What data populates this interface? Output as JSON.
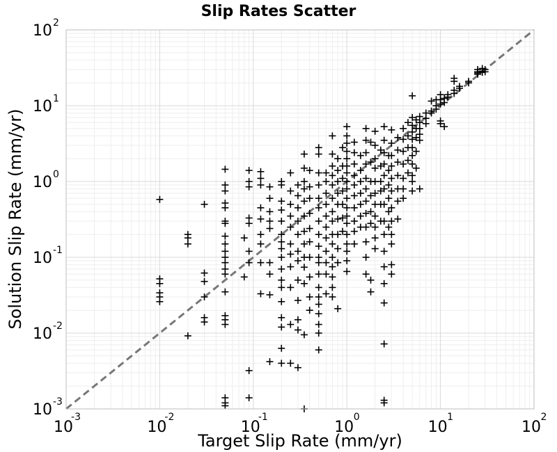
{
  "chart_data": {
    "type": "scatter",
    "title": "Slip Rates Scatter",
    "xlabel": "Target Slip Rate (mm/yr)",
    "ylabel": "Solution Slip Rate (mm/yr)",
    "xscale": "log",
    "yscale": "log",
    "xlim": [
      0.001,
      100
    ],
    "ylim": [
      0.001,
      100
    ],
    "grid": true,
    "x_ticks": [
      {
        "base": "10",
        "exp": "-3"
      },
      {
        "base": "10",
        "exp": "-2"
      },
      {
        "base": "10",
        "exp": "-1"
      },
      {
        "base": "10",
        "exp": "0"
      },
      {
        "base": "10",
        "exp": "1"
      },
      {
        "base": "10",
        "exp": "2"
      }
    ],
    "y_ticks": [
      {
        "base": "10",
        "exp": "-3"
      },
      {
        "base": "10",
        "exp": "-2"
      },
      {
        "base": "10",
        "exp": "-1"
      },
      {
        "base": "10",
        "exp": "0"
      },
      {
        "base": "10",
        "exp": "1"
      },
      {
        "base": "10",
        "exp": "2"
      }
    ],
    "reference_line": {
      "type": "y=x",
      "style": "dashed",
      "color": "#777777"
    },
    "marker": {
      "shape": "plus",
      "color": "#000000"
    },
    "points": [
      [
        0.01,
        0.58
      ],
      [
        0.01,
        0.052
      ],
      [
        0.01,
        0.045
      ],
      [
        0.01,
        0.034
      ],
      [
        0.01,
        0.03
      ],
      [
        0.01,
        0.026
      ],
      [
        0.02,
        0.2
      ],
      [
        0.02,
        0.18
      ],
      [
        0.02,
        0.15
      ],
      [
        0.02,
        0.0092
      ],
      [
        0.03,
        0.5
      ],
      [
        0.03,
        0.062
      ],
      [
        0.03,
        0.048
      ],
      [
        0.03,
        0.03
      ],
      [
        0.03,
        0.016
      ],
      [
        0.03,
        0.014
      ],
      [
        0.05,
        1.45
      ],
      [
        0.05,
        0.9
      ],
      [
        0.05,
        0.75
      ],
      [
        0.05,
        0.52
      ],
      [
        0.05,
        0.45
      ],
      [
        0.05,
        0.3
      ],
      [
        0.05,
        0.28
      ],
      [
        0.05,
        0.19
      ],
      [
        0.05,
        0.15
      ],
      [
        0.05,
        0.12
      ],
      [
        0.05,
        0.1
      ],
      [
        0.05,
        0.085
      ],
      [
        0.05,
        0.07
      ],
      [
        0.05,
        0.06
      ],
      [
        0.05,
        0.035
      ],
      [
        0.05,
        0.017
      ],
      [
        0.05,
        0.015
      ],
      [
        0.05,
        0.013
      ],
      [
        0.05,
        0.0014
      ],
      [
        0.05,
        0.0012
      ],
      [
        0.05,
        0.0011
      ],
      [
        0.08,
        0.18
      ],
      [
        0.08,
        0.055
      ],
      [
        0.09,
        1.4
      ],
      [
        0.09,
        1.0
      ],
      [
        0.09,
        0.85
      ],
      [
        0.09,
        0.33
      ],
      [
        0.09,
        0.28
      ],
      [
        0.09,
        0.12
      ],
      [
        0.09,
        0.085
      ],
      [
        0.09,
        0.0032
      ],
      [
        0.09,
        0.0014
      ],
      [
        0.12,
        1.35
      ],
      [
        0.12,
        1.1
      ],
      [
        0.12,
        0.9
      ],
      [
        0.12,
        0.45
      ],
      [
        0.12,
        0.32
      ],
      [
        0.12,
        0.2
      ],
      [
        0.12,
        0.15
      ],
      [
        0.12,
        0.085
      ],
      [
        0.12,
        0.033
      ],
      [
        0.15,
        0.85
      ],
      [
        0.15,
        0.6
      ],
      [
        0.15,
        0.4
      ],
      [
        0.15,
        0.3
      ],
      [
        0.15,
        0.24
      ],
      [
        0.15,
        0.085
      ],
      [
        0.15,
        0.06
      ],
      [
        0.15,
        0.032
      ],
      [
        0.15,
        0.0042
      ],
      [
        0.2,
        1.0
      ],
      [
        0.2,
        0.9
      ],
      [
        0.2,
        0.55
      ],
      [
        0.2,
        0.42
      ],
      [
        0.2,
        0.3
      ],
      [
        0.2,
        0.2
      ],
      [
        0.2,
        0.16
      ],
      [
        0.2,
        0.13
      ],
      [
        0.2,
        0.1
      ],
      [
        0.2,
        0.07
      ],
      [
        0.2,
        0.05
      ],
      [
        0.2,
        0.04
      ],
      [
        0.2,
        0.026
      ],
      [
        0.2,
        0.016
      ],
      [
        0.2,
        0.012
      ],
      [
        0.2,
        0.0063
      ],
      [
        0.2,
        0.004
      ],
      [
        0.25,
        1.3
      ],
      [
        0.25,
        0.75
      ],
      [
        0.25,
        0.5
      ],
      [
        0.25,
        0.35
      ],
      [
        0.25,
        0.25
      ],
      [
        0.25,
        0.15
      ],
      [
        0.25,
        0.11
      ],
      [
        0.25,
        0.075
      ],
      [
        0.25,
        0.04
      ],
      [
        0.25,
        0.013
      ],
      [
        0.25,
        0.004
      ],
      [
        0.3,
        0.9
      ],
      [
        0.3,
        0.65
      ],
      [
        0.3,
        0.45
      ],
      [
        0.3,
        0.3
      ],
      [
        0.3,
        0.2
      ],
      [
        0.3,
        0.12
      ],
      [
        0.3,
        0.09
      ],
      [
        0.3,
        0.05
      ],
      [
        0.3,
        0.027
      ],
      [
        0.3,
        0.015
      ],
      [
        0.3,
        0.011
      ],
      [
        0.3,
        0.0035
      ],
      [
        0.35,
        2.3
      ],
      [
        0.35,
        1.5
      ],
      [
        0.35,
        1.0
      ],
      [
        0.35,
        0.8
      ],
      [
        0.35,
        0.55
      ],
      [
        0.35,
        0.35
      ],
      [
        0.35,
        0.22
      ],
      [
        0.35,
        0.15
      ],
      [
        0.35,
        0.1
      ],
      [
        0.35,
        0.074
      ],
      [
        0.35,
        0.045
      ],
      [
        0.35,
        0.0095
      ],
      [
        0.35,
        0.001
      ],
      [
        0.4,
        1.4
      ],
      [
        0.4,
        0.85
      ],
      [
        0.4,
        0.6
      ],
      [
        0.4,
        0.38
      ],
      [
        0.4,
        0.24
      ],
      [
        0.4,
        0.16
      ],
      [
        0.4,
        0.1
      ],
      [
        0.4,
        0.055
      ],
      [
        0.4,
        0.03
      ],
      [
        0.4,
        0.02
      ],
      [
        0.5,
        2.8
      ],
      [
        0.5,
        2.3
      ],
      [
        0.5,
        1.3
      ],
      [
        0.5,
        0.9
      ],
      [
        0.5,
        0.6
      ],
      [
        0.5,
        0.45
      ],
      [
        0.5,
        0.3
      ],
      [
        0.5,
        0.2
      ],
      [
        0.5,
        0.14
      ],
      [
        0.5,
        0.1
      ],
      [
        0.5,
        0.085
      ],
      [
        0.5,
        0.06
      ],
      [
        0.5,
        0.04
      ],
      [
        0.5,
        0.03
      ],
      [
        0.5,
        0.024
      ],
      [
        0.5,
        0.018
      ],
      [
        0.5,
        0.013
      ],
      [
        0.5,
        0.01
      ],
      [
        0.5,
        0.006
      ],
      [
        0.6,
        1.3
      ],
      [
        0.6,
        1.0
      ],
      [
        0.6,
        0.7
      ],
      [
        0.6,
        0.5
      ],
      [
        0.6,
        0.35
      ],
      [
        0.6,
        0.25
      ],
      [
        0.6,
        0.18
      ],
      [
        0.6,
        0.12
      ],
      [
        0.6,
        0.085
      ],
      [
        0.6,
        0.06
      ],
      [
        0.6,
        0.033
      ],
      [
        0.7,
        4.0
      ],
      [
        0.7,
        2.3
      ],
      [
        0.7,
        1.6
      ],
      [
        0.7,
        1.2
      ],
      [
        0.7,
        0.9
      ],
      [
        0.7,
        0.6
      ],
      [
        0.7,
        0.4
      ],
      [
        0.7,
        0.3
      ],
      [
        0.7,
        0.2
      ],
      [
        0.7,
        0.15
      ],
      [
        0.7,
        0.1
      ],
      [
        0.7,
        0.075
      ],
      [
        0.7,
        0.055
      ],
      [
        0.7,
        0.04
      ],
      [
        0.7,
        0.03
      ],
      [
        0.8,
        2.0
      ],
      [
        0.8,
        1.4
      ],
      [
        0.8,
        1.0
      ],
      [
        0.8,
        0.7
      ],
      [
        0.8,
        0.5
      ],
      [
        0.8,
        0.32
      ],
      [
        0.8,
        0.2
      ],
      [
        0.8,
        0.13
      ],
      [
        0.8,
        0.085
      ],
      [
        0.8,
        0.021
      ],
      [
        0.9,
        2.8
      ],
      [
        0.9,
        1.6
      ],
      [
        0.9,
        1.1
      ],
      [
        0.9,
        0.75
      ],
      [
        0.9,
        0.5
      ],
      [
        0.9,
        0.33
      ],
      [
        0.9,
        0.22
      ],
      [
        1.0,
        5.3
      ],
      [
        1.0,
        4.0
      ],
      [
        1.0,
        3.2
      ],
      [
        1.0,
        2.5
      ],
      [
        1.0,
        2.0
      ],
      [
        1.0,
        1.6
      ],
      [
        1.0,
        1.3
      ],
      [
        1.0,
        1.0
      ],
      [
        1.0,
        0.8
      ],
      [
        1.0,
        0.6
      ],
      [
        1.0,
        0.45
      ],
      [
        1.0,
        0.35
      ],
      [
        1.0,
        0.28
      ],
      [
        1.0,
        0.2
      ],
      [
        1.0,
        0.15
      ],
      [
        1.0,
        0.12
      ],
      [
        1.0,
        0.09
      ],
      [
        1.0,
        0.065
      ],
      [
        1.2,
        3.3
      ],
      [
        1.2,
        2.4
      ],
      [
        1.2,
        1.7
      ],
      [
        1.2,
        1.2
      ],
      [
        1.2,
        0.9
      ],
      [
        1.2,
        0.65
      ],
      [
        1.2,
        0.45
      ],
      [
        1.2,
        0.3
      ],
      [
        1.2,
        0.22
      ],
      [
        1.2,
        0.15
      ],
      [
        1.4,
        2.2
      ],
      [
        1.4,
        1.4
      ],
      [
        1.4,
        1.0
      ],
      [
        1.4,
        0.7
      ],
      [
        1.4,
        0.5
      ],
      [
        1.4,
        0.35
      ],
      [
        1.4,
        0.25
      ],
      [
        1.6,
        5.0
      ],
      [
        1.6,
        3.5
      ],
      [
        1.6,
        2.4
      ],
      [
        1.6,
        1.7
      ],
      [
        1.6,
        1.1
      ],
      [
        1.6,
        0.8
      ],
      [
        1.6,
        0.55
      ],
      [
        1.6,
        0.38
      ],
      [
        1.6,
        0.25
      ],
      [
        1.6,
        0.16
      ],
      [
        1.6,
        0.1
      ],
      [
        1.6,
        0.06
      ],
      [
        1.8,
        3.3
      ],
      [
        1.8,
        1.8
      ],
      [
        1.8,
        1.0
      ],
      [
        1.8,
        0.65
      ],
      [
        1.8,
        0.4
      ],
      [
        1.8,
        0.28
      ],
      [
        1.8,
        0.05
      ],
      [
        1.8,
        0.035
      ],
      [
        2.0,
        4.6
      ],
      [
        2.0,
        3.0
      ],
      [
        2.0,
        2.0
      ],
      [
        2.0,
        1.5
      ],
      [
        2.0,
        1.0
      ],
      [
        2.0,
        0.7
      ],
      [
        2.0,
        0.5
      ],
      [
        2.0,
        0.35
      ],
      [
        2.0,
        0.25
      ],
      [
        2.0,
        0.18
      ],
      [
        2.0,
        0.13
      ],
      [
        2.3,
        2.6
      ],
      [
        2.3,
        1.6
      ],
      [
        2.3,
        1.0
      ],
      [
        2.3,
        0.75
      ],
      [
        2.3,
        0.5
      ],
      [
        2.3,
        0.3
      ],
      [
        2.5,
        5.3
      ],
      [
        2.5,
        3.5
      ],
      [
        2.5,
        2.4
      ],
      [
        2.5,
        1.7
      ],
      [
        2.5,
        1.2
      ],
      [
        2.5,
        0.8
      ],
      [
        2.5,
        0.5
      ],
      [
        2.5,
        0.3
      ],
      [
        2.5,
        0.2
      ],
      [
        2.5,
        0.12
      ],
      [
        2.5,
        0.075
      ],
      [
        2.5,
        0.045
      ],
      [
        2.5,
        0.025
      ],
      [
        2.5,
        0.0072
      ],
      [
        2.5,
        0.0013
      ],
      [
        2.5,
        0.0012
      ],
      [
        2.8,
        2.2
      ],
      [
        2.8,
        1.4
      ],
      [
        2.8,
        0.9
      ],
      [
        2.8,
        0.6
      ],
      [
        2.8,
        0.4
      ],
      [
        2.8,
        0.25
      ],
      [
        3.0,
        4.8
      ],
      [
        3.0,
        3.2
      ],
      [
        3.0,
        2.2
      ],
      [
        3.0,
        1.6
      ],
      [
        3.0,
        1.1
      ],
      [
        3.0,
        0.75
      ],
      [
        3.0,
        0.45
      ],
      [
        3.0,
        0.3
      ],
      [
        3.0,
        0.2
      ],
      [
        3.0,
        0.15
      ],
      [
        3.0,
        0.08
      ],
      [
        3.0,
        0.06
      ],
      [
        3.5,
        3.8
      ],
      [
        3.5,
        2.6
      ],
      [
        3.5,
        1.8
      ],
      [
        3.5,
        1.2
      ],
      [
        3.5,
        0.8
      ],
      [
        3.5,
        0.55
      ],
      [
        3.5,
        0.32
      ],
      [
        4.0,
        5.0
      ],
      [
        4.0,
        3.6
      ],
      [
        4.0,
        2.5
      ],
      [
        4.0,
        1.7
      ],
      [
        4.0,
        1.1
      ],
      [
        4.0,
        0.8
      ],
      [
        4.0,
        0.6
      ],
      [
        4.5,
        6.0
      ],
      [
        4.5,
        4.0
      ],
      [
        4.5,
        2.8
      ],
      [
        4.5,
        1.9
      ],
      [
        4.5,
        1.3
      ],
      [
        5.0,
        13.5
      ],
      [
        5.0,
        7.0
      ],
      [
        5.0,
        5.5
      ],
      [
        5.0,
        4.5
      ],
      [
        5.0,
        3.6
      ],
      [
        5.0,
        2.8
      ],
      [
        5.0,
        2.2
      ],
      [
        5.0,
        1.7
      ],
      [
        5.0,
        1.2
      ],
      [
        5.0,
        1.0
      ],
      [
        5.0,
        0.75
      ],
      [
        5.5,
        6.5
      ],
      [
        5.5,
        5.0
      ],
      [
        5.5,
        3.8
      ],
      [
        5.5,
        2.5
      ],
      [
        5.5,
        1.5
      ],
      [
        6.0,
        7.2
      ],
      [
        6.0,
        6.0
      ],
      [
        6.0,
        5.0
      ],
      [
        6.0,
        4.2
      ],
      [
        6.0,
        3.5
      ],
      [
        6.0,
        0.8
      ],
      [
        7.0,
        8.0
      ],
      [
        7.0,
        6.8
      ],
      [
        7.0,
        5.8
      ],
      [
        8.0,
        11.5
      ],
      [
        8.0,
        8.5
      ],
      [
        8.0,
        8.0
      ],
      [
        9.0,
        12.0
      ],
      [
        9.0,
        10.0
      ],
      [
        9.0,
        9.0
      ],
      [
        10.0,
        14.0
      ],
      [
        10.0,
        12.0
      ],
      [
        10.0,
        10.5
      ],
      [
        10.0,
        6.3
      ],
      [
        10.0,
        5.8
      ],
      [
        11.0,
        12.5
      ],
      [
        11.0,
        11.0
      ],
      [
        11.0,
        5.3
      ],
      [
        12.0,
        14.0
      ],
      [
        12.0,
        13.0
      ],
      [
        14.0,
        23.0
      ],
      [
        14.0,
        21.0
      ],
      [
        14.0,
        16.0
      ],
      [
        14.0,
        14.5
      ],
      [
        16.0,
        18.0
      ],
      [
        16.0,
        17.0
      ],
      [
        20.0,
        21.0
      ],
      [
        20.0,
        20.0
      ],
      [
        25.0,
        30.0
      ],
      [
        25.0,
        28.0
      ],
      [
        25.0,
        27.0
      ],
      [
        25.0,
        26.0
      ],
      [
        28.0,
        31.0
      ],
      [
        28.0,
        28.5
      ],
      [
        28.0,
        27.5
      ],
      [
        30.0,
        30.0
      ],
      [
        30.0,
        28.0
      ]
    ]
  }
}
